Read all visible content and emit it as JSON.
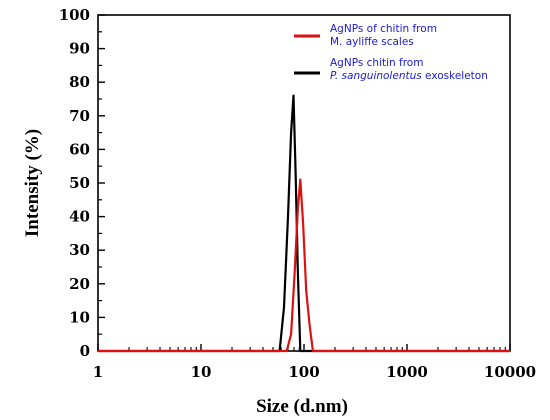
{
  "chart_data": {
    "type": "line",
    "xscale": "log",
    "xlabel": "Size (d.nm)",
    "ylabel": "Intensity (%)",
    "xlim": [
      1,
      10000
    ],
    "ylim": [
      0,
      100
    ],
    "xticks": [
      1,
      10,
      100,
      1000,
      10000
    ],
    "xtick_labels": [
      "1",
      "10",
      "100",
      "1000",
      "10000"
    ],
    "yticks": [
      0,
      10,
      20,
      30,
      40,
      50,
      60,
      70,
      80,
      90,
      100
    ],
    "ytick_labels": [
      "0",
      "10",
      "20",
      "30",
      "40",
      "50",
      "60",
      "70",
      "80",
      "90",
      "100"
    ],
    "legend_placement": "top-right",
    "series": [
      {
        "name_lines": [
          "AgNPs of chitin from",
          "M. ayliffe scales"
        ],
        "color": "#dd1111",
        "x": [
          1,
          68,
          75,
          81,
          87,
          92,
          98,
          105,
          113,
          122,
          130,
          10000
        ],
        "y": [
          0,
          0,
          5,
          23,
          42,
          51,
          38,
          18,
          8,
          0,
          0,
          0
        ]
      },
      {
        "name_lines": [
          "AgNPs chitin from",
          "P. sanguinolentus exoskeleton"
        ],
        "name_italic_prefix": "P. sanguinolentus",
        "name_suffix": " exoskeleton",
        "color": "#000000",
        "x": [
          1,
          58,
          64,
          70,
          75,
          79,
          83,
          87,
          92,
          10000
        ],
        "y": [
          0,
          0,
          13,
          40,
          65,
          76,
          52,
          24,
          0,
          0
        ]
      }
    ]
  }
}
